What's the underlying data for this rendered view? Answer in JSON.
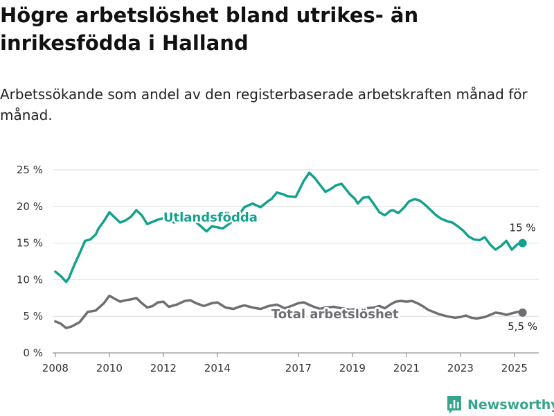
{
  "title": "Högre arbetslöshet bland utrikes- än inrikesfödda i Halland",
  "subtitle": "Arbetssökande som andel av den registerbaserade arbetskraften månad för månad.",
  "brand": {
    "name": "Newsworthy",
    "logo_icon": "bar-chart-logo-icon",
    "color": "#37a58c"
  },
  "chart_data": {
    "type": "line",
    "title": "Högre arbetslöshet bland utrikes- än inrikesfödda i Halland",
    "subtitle": "Arbetssökande som andel av den registerbaserade arbetskraften månad för månad.",
    "xlabel": "",
    "ylabel": "",
    "xlim": [
      2007.9,
      2025.9
    ],
    "ylim": [
      0,
      25
    ],
    "grid": true,
    "xticks": [
      2008,
      2010,
      2012,
      2014,
      2017,
      2019,
      2021,
      2023,
      2025
    ],
    "xtick_labels": [
      "2008",
      "2010",
      "2012",
      "2014",
      "2017",
      "2019",
      "2021",
      "2023",
      "2025"
    ],
    "yticks": [
      0,
      5,
      10,
      15,
      20,
      25
    ],
    "ytick_labels": [
      "0 %",
      "5 %",
      "10 %",
      "15 %",
      "20 %",
      "25 %"
    ],
    "series": [
      {
        "name": "Utlandsfödda",
        "color": "#12a28c",
        "end_label": "15 %",
        "x": [
          2008.0,
          2008.2,
          2008.4,
          2008.5,
          2008.7,
          2008.9,
          2009.1,
          2009.3,
          2009.5,
          2009.6,
          2009.8,
          2010.0,
          2010.2,
          2010.4,
          2010.6,
          2010.8,
          2011.0,
          2011.2,
          2011.4,
          2011.6,
          2011.8,
          2012.0,
          2012.4,
          2012.8,
          2013.2,
          2013.6,
          2013.8,
          2014.2,
          2014.5,
          2014.8,
          2015.0,
          2015.3,
          2015.6,
          2015.9,
          2016.0,
          2016.2,
          2016.4,
          2016.6,
          2016.9,
          2017.2,
          2017.4,
          2017.6,
          2018.0,
          2018.2,
          2018.4,
          2018.6,
          2018.9,
          2019.1,
          2019.2,
          2019.4,
          2019.6,
          2019.8,
          2020.0,
          2020.2,
          2020.4,
          2020.5,
          2020.7,
          2020.9,
          2021.1,
          2021.3,
          2021.5,
          2021.7,
          2021.9,
          2022.1,
          2022.3,
          2022.5,
          2022.7,
          2022.9,
          2023.1,
          2023.3,
          2023.5,
          2023.7,
          2023.9,
          2024.1,
          2024.3,
          2024.5,
          2024.7,
          2024.9,
          2025.1,
          2025.2,
          2025.3
        ],
        "y": [
          11.1,
          10.5,
          9.7,
          10.2,
          12.0,
          13.6,
          15.3,
          15.5,
          16.2,
          17.0,
          18.0,
          19.2,
          18.5,
          17.8,
          18.1,
          18.6,
          19.5,
          18.8,
          17.6,
          17.9,
          18.2,
          18.4,
          17.8,
          18.6,
          17.9,
          16.6,
          17.3,
          17.0,
          17.8,
          18.9,
          19.9,
          20.4,
          19.9,
          20.8,
          21.0,
          21.9,
          21.7,
          21.4,
          21.3,
          23.5,
          24.6,
          23.9,
          22.0,
          22.4,
          22.9,
          23.1,
          21.7,
          21.0,
          20.4,
          21.2,
          21.3,
          20.3,
          19.2,
          18.8,
          19.4,
          19.5,
          19.1,
          19.8,
          20.7,
          21.0,
          20.8,
          20.2,
          19.5,
          18.8,
          18.3,
          18.0,
          17.8,
          17.3,
          16.7,
          15.9,
          15.5,
          15.4,
          15.8,
          14.8,
          14.1,
          14.6,
          15.3,
          14.1,
          14.8,
          15.0,
          15.0
        ],
        "label_x": 2012.0,
        "label_y": 18.5
      },
      {
        "name": "Total arbetslöshet",
        "color": "#6e6e73",
        "end_label": "5,5 %",
        "x": [
          2008.0,
          2008.2,
          2008.4,
          2008.6,
          2008.9,
          2009.2,
          2009.5,
          2009.8,
          2010.0,
          2010.2,
          2010.4,
          2010.6,
          2010.8,
          2011.0,
          2011.2,
          2011.4,
          2011.6,
          2011.8,
          2012.0,
          2012.2,
          2012.5,
          2012.8,
          2013.0,
          2013.2,
          2013.5,
          2013.8,
          2014.0,
          2014.3,
          2014.6,
          2014.8,
          2015.0,
          2015.3,
          2015.6,
          2015.9,
          2016.2,
          2016.5,
          2016.8,
          2017.0,
          2017.2,
          2017.5,
          2017.8,
          2018.0,
          2018.3,
          2018.6,
          2018.9,
          2019.2,
          2019.5,
          2019.8,
          2020.0,
          2020.2,
          2020.4,
          2020.6,
          2020.8,
          2021.0,
          2021.2,
          2021.4,
          2021.6,
          2021.8,
          2022.0,
          2022.2,
          2022.5,
          2022.8,
          2023.0,
          2023.2,
          2023.4,
          2023.6,
          2023.9,
          2024.1,
          2024.3,
          2024.5,
          2024.7,
          2024.9,
          2025.1,
          2025.2,
          2025.3
        ],
        "y": [
          4.3,
          4.0,
          3.4,
          3.6,
          4.2,
          5.6,
          5.8,
          6.8,
          7.8,
          7.4,
          7.0,
          7.2,
          7.3,
          7.5,
          6.8,
          6.2,
          6.4,
          6.9,
          7.0,
          6.3,
          6.6,
          7.1,
          7.2,
          6.8,
          6.4,
          6.8,
          6.9,
          6.2,
          6.0,
          6.3,
          6.5,
          6.2,
          6.0,
          6.4,
          6.6,
          6.1,
          6.5,
          6.8,
          6.9,
          6.4,
          6.0,
          6.2,
          6.3,
          6.1,
          5.9,
          6.0,
          6.1,
          6.2,
          6.4,
          6.1,
          6.6,
          7.0,
          7.1,
          7.0,
          7.1,
          6.8,
          6.4,
          5.9,
          5.6,
          5.3,
          5.0,
          4.8,
          4.9,
          5.1,
          4.8,
          4.7,
          4.9,
          5.2,
          5.5,
          5.4,
          5.2,
          5.4,
          5.6,
          5.6,
          5.5
        ],
        "label_x": 2016.0,
        "label_y": 5.3
      }
    ]
  }
}
